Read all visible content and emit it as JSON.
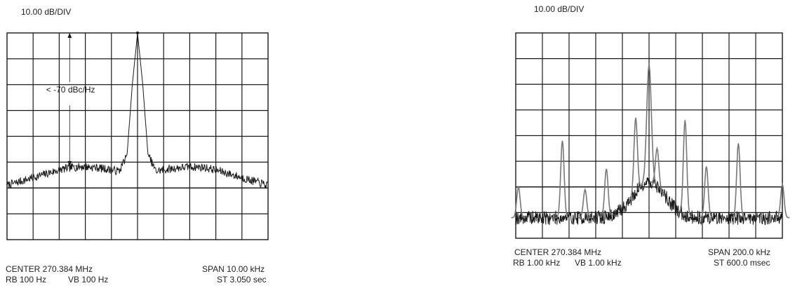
{
  "chart_data": [
    {
      "type": "line",
      "scale_label": "10.00 dB/DIV",
      "divisions": {
        "x": 10,
        "y": 8
      },
      "grid": true,
      "annotation": "< -70 dBc/Hz",
      "footer": {
        "center": "CENTER  270.384 MHz",
        "span": "SPAN 10.00 kHz",
        "rb": "RB 100 Hz",
        "vb": "VB 100 Hz",
        "st": "ST 3.050 sec"
      },
      "trace_color": "#1a1a1a",
      "series": [
        {
          "x": [
            0,
            0.5,
            1,
            1.5,
            2,
            2.5,
            3,
            3.5,
            4,
            4.3,
            4.6,
            4.8,
            5.0,
            5.2,
            5.4,
            5.7,
            6,
            6.5,
            7,
            7.5,
            8,
            8.5,
            9,
            9.5,
            10
          ],
          "y": [
            -59,
            -57.5,
            -56,
            -54.5,
            -53,
            -52,
            -51.8,
            -52.2,
            -53,
            -53.5,
            -47,
            -20,
            0,
            -20,
            -47,
            -53.5,
            -53,
            -52.3,
            -51.8,
            -52,
            -53,
            -54.5,
            -56,
            -57.5,
            -59
          ]
        }
      ]
    },
    {
      "type": "line",
      "scale_label": "10.00 dB/DIV",
      "divisions": {
        "x": 10,
        "y": 8
      },
      "grid": true,
      "footer": {
        "center": "CENTER 270.384 MHz",
        "span": "SPAN 200.0 kHz",
        "rb": "RB 1.00 kHz",
        "vb": "VB 1.00 kHz",
        "st": "ST 600.0 msec"
      },
      "trace_color": "#1a1a1a",
      "peak_color": "#777777",
      "series": [
        {
          "x": [
            0.1,
            1.75,
            2.6,
            3.4,
            4.5,
            5.0,
            5.3,
            6.35,
            7.15,
            8.35,
            10.0
          ],
          "y": [
            -60,
            -42,
            -61,
            -53,
            -33,
            -12,
            -45,
            -34,
            -52,
            -43,
            -59
          ]
        }
      ]
    }
  ]
}
